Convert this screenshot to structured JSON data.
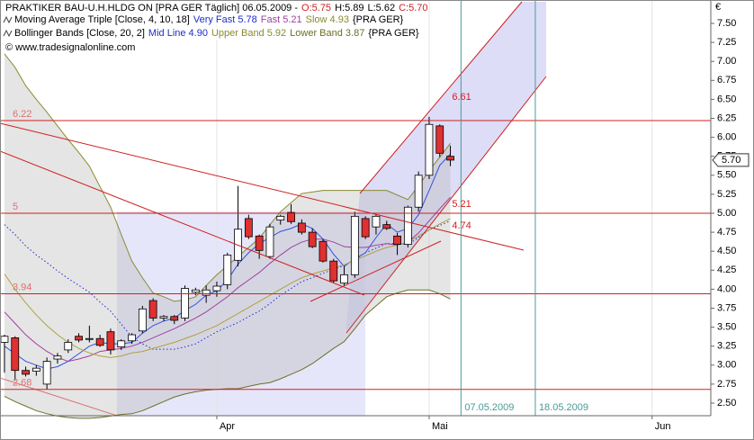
{
  "chart_data": {
    "type": "candlestick",
    "title": "PRAKTIKER BAU-U.H.HLDG ON [PRA GER  Täglich] 06.05.2009 -",
    "header_ohlc": [
      "O:5.75",
      "H:5.89",
      "L:5.62",
      "C:5.70"
    ],
    "legend": [
      {
        "title": "Moving Average Triple [Close, 4, 10, 18]",
        "entries": [
          "Very Fast 5.78",
          "Fast 5.21",
          "Slow 4.93"
        ],
        "suffix": "{PRA GER}"
      },
      {
        "title": "Bollinger Bands [Close, 20, 2]",
        "entries": [
          "Mid Line 4.90",
          "Upper Band 5.92",
          "Lower Band 3.87"
        ],
        "suffix": "{PRA GER}"
      }
    ],
    "copyright": "© www.tradesignalonline.com",
    "currency": "€",
    "last_label": "5.70",
    "x": [
      0,
      1,
      2,
      3,
      4,
      5,
      6,
      7,
      8,
      9,
      10,
      11,
      12,
      13,
      14,
      15,
      16,
      17,
      18,
      19,
      20,
      21,
      22,
      23,
      24,
      25,
      26,
      27,
      28,
      29,
      30,
      31,
      32,
      33,
      34,
      35,
      36,
      37,
      38,
      39,
      40,
      41,
      42
    ],
    "open": [
      3.3,
      3.36,
      2.93,
      2.92,
      2.75,
      3.08,
      3.2,
      3.38,
      3.34,
      3.35,
      3.44,
      3.24,
      3.32,
      3.45,
      3.85,
      3.62,
      3.64,
      3.62,
      3.96,
      3.92,
      3.98,
      4.06,
      4.38,
      4.93,
      4.7,
      4.43,
      4.91,
      5.01,
      4.87,
      4.75,
      4.63,
      4.37,
      4.08,
      4.19,
      4.93,
      4.82,
      4.85,
      4.7,
      4.59,
      5.08,
      5.5,
      6.15,
      5.75
    ],
    "high": [
      3.4,
      3.38,
      2.98,
      3.0,
      3.1,
      3.16,
      3.34,
      3.42,
      3.52,
      3.4,
      3.48,
      3.34,
      3.42,
      3.78,
      3.88,
      3.66,
      3.66,
      4.05,
      4.02,
      4.05,
      4.1,
      4.48,
      5.36,
      4.98,
      4.72,
      4.86,
      4.98,
      5.12,
      4.92,
      4.8,
      4.66,
      4.4,
      4.3,
      5.02,
      4.96,
      4.98,
      4.9,
      4.74,
      5.1,
      5.55,
      6.27,
      6.17,
      5.89
    ],
    "low": [
      2.9,
      2.8,
      2.85,
      2.86,
      2.68,
      3.02,
      3.16,
      3.3,
      3.3,
      3.24,
      3.14,
      3.2,
      3.28,
      3.42,
      3.58,
      3.58,
      3.54,
      3.58,
      3.92,
      3.82,
      3.9,
      4.0,
      4.3,
      4.66,
      4.4,
      4.4,
      4.85,
      4.86,
      4.72,
      4.54,
      4.35,
      4.08,
      4.04,
      4.15,
      4.66,
      4.72,
      4.78,
      4.45,
      4.55,
      5.02,
      5.45,
      5.74,
      5.62
    ],
    "close": [
      3.38,
      2.93,
      2.88,
      2.96,
      3.05,
      3.12,
      3.3,
      3.33,
      3.35,
      3.26,
      3.2,
      3.32,
      3.4,
      3.74,
      3.62,
      3.64,
      3.59,
      4.01,
      3.99,
      3.99,
      4.04,
      4.45,
      4.79,
      4.69,
      4.51,
      4.82,
      4.96,
      4.89,
      4.75,
      4.56,
      4.37,
      4.11,
      4.19,
      4.96,
      4.69,
      4.96,
      4.8,
      4.59,
      5.08,
      5.5,
      6.17,
      5.79,
      5.7
    ],
    "series": [
      {
        "color": "#8a8a30",
        "values": [
          7.1,
          6.92,
          6.68,
          6.5,
          6.33,
          6.15,
          5.97,
          5.8,
          5.62,
          5.35,
          5.08,
          4.72,
          4.37,
          4.15,
          3.95,
          3.9,
          3.84,
          3.86,
          3.9,
          4.05,
          4.19,
          4.31,
          4.43,
          4.55,
          4.67,
          4.85,
          5.02,
          5.14,
          5.26,
          5.28,
          5.3,
          5.3,
          5.3,
          5.3,
          5.3,
          5.3,
          5.3,
          5.24,
          5.18,
          5.36,
          5.56,
          5.74,
          5.92
        ]
      },
      {
        "color": "#6e6e28",
        "values": [
          2.59,
          2.52,
          2.46,
          2.4,
          2.36,
          2.33,
          2.31,
          2.3,
          2.3,
          2.31,
          2.33,
          2.35,
          2.36,
          2.4,
          2.46,
          2.52,
          2.58,
          2.62,
          2.65,
          2.67,
          2.68,
          2.69,
          2.69,
          2.72,
          2.75,
          2.77,
          2.82,
          2.88,
          2.94,
          3.02,
          3.12,
          3.22,
          3.31,
          3.48,
          3.66,
          3.78,
          3.9,
          3.95,
          3.99,
          3.99,
          3.99,
          3.94,
          3.87
        ]
      },
      {
        "color": "#1e2ec8",
        "dashed": true,
        "values": [
          4.85,
          4.72,
          4.57,
          4.45,
          4.35,
          4.24,
          4.14,
          4.05,
          3.96,
          3.83,
          3.71,
          3.54,
          3.37,
          3.28,
          3.21,
          3.21,
          3.21,
          3.24,
          3.28,
          3.36,
          3.44,
          3.5,
          3.56,
          3.64,
          3.71,
          3.81,
          3.92,
          4.01,
          4.1,
          4.15,
          4.21,
          4.26,
          4.31,
          4.39,
          4.48,
          4.54,
          4.6,
          4.6,
          4.59,
          4.68,
          4.78,
          4.84,
          4.9
        ]
      },
      {
        "color": "#3050e0",
        "values": [
          3.25,
          3.15,
          3.05,
          3.0,
          2.95,
          2.98,
          3.05,
          3.15,
          3.25,
          3.3,
          3.28,
          3.28,
          3.3,
          3.42,
          3.52,
          3.58,
          3.62,
          3.72,
          3.8,
          3.92,
          3.98,
          4.12,
          4.33,
          4.48,
          4.6,
          4.68,
          4.76,
          4.8,
          4.86,
          4.8,
          4.66,
          4.46,
          4.3,
          4.4,
          4.48,
          4.68,
          4.86,
          4.75,
          4.8,
          4.98,
          5.3,
          5.63,
          5.78
        ]
      },
      {
        "color": "#a040a0",
        "values": [
          3.7,
          3.55,
          3.4,
          3.28,
          3.18,
          3.1,
          3.05,
          3.08,
          3.12,
          3.18,
          3.2,
          3.22,
          3.25,
          3.3,
          3.36,
          3.42,
          3.48,
          3.55,
          3.62,
          3.7,
          3.8,
          3.9,
          4.02,
          4.12,
          4.22,
          4.34,
          4.45,
          4.55,
          4.62,
          4.66,
          4.66,
          4.62,
          4.56,
          4.55,
          4.55,
          4.58,
          4.6,
          4.58,
          4.62,
          4.74,
          4.9,
          5.06,
          5.21
        ]
      },
      {
        "color": "#b0a040",
        "values": [
          4.2,
          4.0,
          3.82,
          3.66,
          3.52,
          3.4,
          3.3,
          3.22,
          3.16,
          3.12,
          3.1,
          3.12,
          3.16,
          3.18,
          3.22,
          3.26,
          3.3,
          3.35,
          3.4,
          3.46,
          3.52,
          3.6,
          3.68,
          3.76,
          3.84,
          3.92,
          4.0,
          4.08,
          4.15,
          4.2,
          4.24,
          4.28,
          4.32,
          4.38,
          4.44,
          4.5,
          4.55,
          4.58,
          4.62,
          4.7,
          4.78,
          4.86,
          4.93
        ]
      }
    ],
    "legend_colors": [
      [
        "#1e2ec8",
        "#a040a0",
        "#8a8a30"
      ],
      [
        "#1e2ec8",
        "#8a8a30",
        "#6e6e28"
      ]
    ],
    "up_color": "#ffffff",
    "down_color": "#e03030",
    "hlines": [
      6.22,
      5,
      3.94,
      2.68
    ],
    "hline_color": "#d02020",
    "annotations": [
      6.61,
      5.21,
      4.74
    ],
    "vlines": [
      {
        "x": 43,
        "label": "07.05.2009"
      },
      {
        "x": 50,
        "label": "18.05.2009"
      }
    ],
    "xlim": [
      -0.42,
      66.53
    ],
    "xticks": [
      {
        "value": 20,
        "label": "Apr"
      },
      {
        "value": 40,
        "label": "Mai"
      },
      {
        "value": 61,
        "label": "Jun"
      }
    ],
    "ylim": [
      2.334,
      7.808
    ],
    "yticks": [
      {
        "value": 2.5,
        "label": "2.50"
      },
      {
        "value": 2.75,
        "label": "2.75"
      },
      {
        "value": 3,
        "label": "3.00"
      },
      {
        "value": 3.25,
        "label": "3.25"
      },
      {
        "value": 3.5,
        "label": "3.50"
      },
      {
        "value": 3.75,
        "label": "3.75"
      },
      {
        "value": 4,
        "label": "4.00"
      },
      {
        "value": 4.25,
        "label": "4.25"
      },
      {
        "value": 4.5,
        "label": "4.50"
      },
      {
        "value": 4.75,
        "label": "4.75"
      },
      {
        "value": 5,
        "label": "5.00"
      },
      {
        "value": 5.25,
        "label": "5.25"
      },
      {
        "value": 5.5,
        "label": "5.50"
      },
      {
        "value": 5.75,
        "label": "5.75"
      },
      {
        "value": 6,
        "label": "6.00"
      },
      {
        "value": 6.25,
        "label": "6.25"
      },
      {
        "value": 6.5,
        "label": "6.50"
      },
      {
        "value": 6.75,
        "label": "6.75"
      },
      {
        "value": 7,
        "label": "7.00"
      },
      {
        "value": 7.25,
        "label": "7.25"
      },
      {
        "value": 7.5,
        "label": "7.50"
      }
    ]
  }
}
